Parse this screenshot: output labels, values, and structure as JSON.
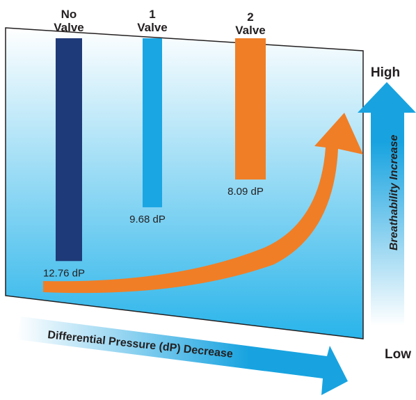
{
  "chart_data": {
    "type": "bar",
    "categories": [
      "No Valve",
      "1 Valve",
      "2 Valve"
    ],
    "category_lines": [
      [
        "No",
        "Valve"
      ],
      [
        "1",
        "Valve"
      ],
      [
        "2",
        "Valve"
      ]
    ],
    "values": [
      12.76,
      9.68,
      8.09
    ],
    "value_labels": [
      "12.76 dP",
      "9.68 dP",
      "8.09 dP"
    ],
    "bar_colors": [
      "#1f3a78",
      "#1aa6e3",
      "#f07e26"
    ],
    "axis_top_label": "High",
    "axis_bottom_label": "Low",
    "vertical_arrow_label": "Breathability Increase",
    "horizontal_arrow_label": "Differential Pressure (dP) Decrease",
    "trend_arrow_color": "#f07e26",
    "panel_gradient": [
      "#ffffff",
      "#29b4ea"
    ],
    "blue_arrow_color": "#18a3e0"
  }
}
